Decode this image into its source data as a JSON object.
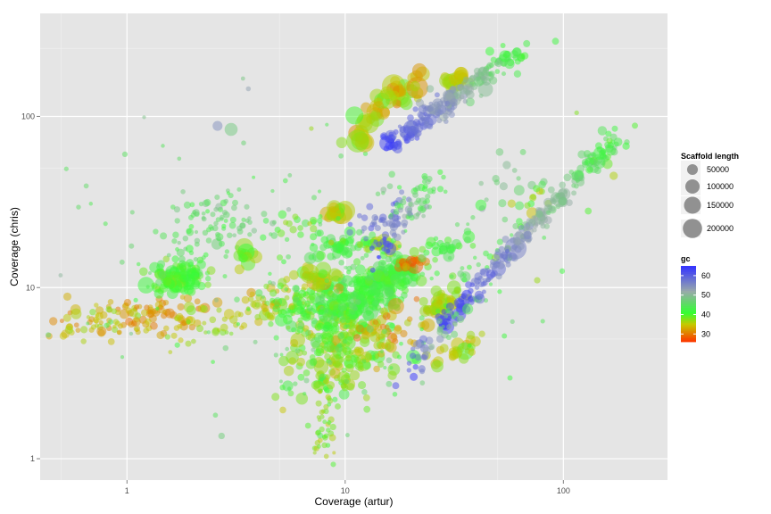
{
  "chart_data": {
    "type": "scatter",
    "title": "",
    "xlabel": "Coverage (artur)",
    "ylabel": "Coverage (chris)",
    "x_scale": "log10",
    "y_scale": "log10",
    "xlim": [
      0.4,
      300
    ],
    "ylim": [
      0.75,
      400
    ],
    "x_ticks": [
      {
        "value": 1,
        "label": "1"
      },
      {
        "value": 10,
        "label": "10"
      },
      {
        "value": 100,
        "label": "100"
      }
    ],
    "y_ticks": [
      {
        "value": 1,
        "label": "1"
      },
      {
        "value": 10,
        "label": "10"
      },
      {
        "value": 100,
        "label": "100"
      }
    ],
    "grid": true,
    "size_legend": {
      "title": "Scaffold length",
      "entries": [
        {
          "value": 50000,
          "label": "50000"
        },
        {
          "value": 100000,
          "label": "100000"
        },
        {
          "value": 150000,
          "label": "150000"
        },
        {
          "value": 200000,
          "label": "200000"
        }
      ]
    },
    "color_legend": {
      "title": "gc",
      "range": [
        26,
        65
      ],
      "ticks": [
        {
          "value": 60,
          "label": "60"
        },
        {
          "value": 50,
          "label": "50"
        },
        {
          "value": 40,
          "label": "40"
        },
        {
          "value": 30,
          "label": "30"
        }
      ],
      "colors": [
        {
          "value": 26,
          "color": "#ff3300"
        },
        {
          "value": 35,
          "color": "#c8c800"
        },
        {
          "value": 41,
          "color": "#33ff33"
        },
        {
          "value": 52,
          "color": "#99aaaa"
        },
        {
          "value": 65,
          "color": "#3333ff"
        }
      ]
    },
    "clusters": [
      {
        "x": 1.3,
        "y": 7.0,
        "sx": 0.16,
        "sy": 0.06,
        "gc": 33,
        "n": 90,
        "len": 12000,
        "rho": 0.1
      },
      {
        "x": 0.75,
        "y": 5.9,
        "sx": 0.12,
        "sy": 0.05,
        "gc": 35,
        "n": 40,
        "len": 9000,
        "rho": 0.3
      },
      {
        "x": 1.8,
        "y": 11.5,
        "sx": 0.07,
        "sy": 0.045,
        "gc": 41,
        "n": 110,
        "len": 24000,
        "rho": 0.3
      },
      {
        "x": 2.5,
        "y": 23.0,
        "sx": 0.13,
        "sy": 0.1,
        "gc": 45,
        "n": 90,
        "len": 7000,
        "rho": 0.4
      },
      {
        "x": 2.6,
        "y": 6.2,
        "sx": 0.14,
        "sy": 0.06,
        "gc": 37,
        "n": 35,
        "len": 8000,
        "rho": 0.3
      },
      {
        "x": 4.5,
        "y": 8.2,
        "sx": 0.09,
        "sy": 0.06,
        "gc": 36,
        "n": 45,
        "len": 15000,
        "rho": 0.4
      },
      {
        "x": 3.5,
        "y": 15.0,
        "sx": 0.03,
        "sy": 0.025,
        "gc": 39,
        "n": 12,
        "len": 60000,
        "rho": 0.0
      },
      {
        "x": 9.5,
        "y": 4.3,
        "sx": 0.12,
        "sy": 0.14,
        "gc": 38,
        "n": 190,
        "len": 25000,
        "rho": 0.1
      },
      {
        "x": 8.0,
        "y": 7.5,
        "sx": 0.12,
        "sy": 0.08,
        "gc": 41,
        "n": 150,
        "len": 20000,
        "rho": 0.2
      },
      {
        "x": 13.0,
        "y": 9.5,
        "sx": 0.1,
        "sy": 0.09,
        "gc": 42,
        "n": 170,
        "len": 18000,
        "rho": 0.5
      },
      {
        "x": 16.0,
        "y": 11.5,
        "sx": 0.07,
        "sy": 0.05,
        "gc": 42,
        "n": 70,
        "len": 30000,
        "rho": 0.4
      },
      {
        "x": 8.0,
        "y": 1.6,
        "sx": 0.03,
        "sy": 0.12,
        "gc": 38,
        "n": 45,
        "len": 5000,
        "rho": 0.0
      },
      {
        "x": 7.3,
        "y": 11.5,
        "sx": 0.05,
        "sy": 0.03,
        "gc": 36,
        "n": 30,
        "len": 40000,
        "rho": 0.0
      },
      {
        "x": 9.0,
        "y": 27.5,
        "sx": 0.03,
        "sy": 0.02,
        "gc": 35,
        "n": 20,
        "len": 45000,
        "rho": 0.0
      },
      {
        "x": 9.8,
        "y": 17.5,
        "sx": 0.06,
        "sy": 0.03,
        "gc": 42,
        "n": 40,
        "len": 25000,
        "rho": 0.5
      },
      {
        "x": 14.5,
        "y": 17.5,
        "sx": 0.04,
        "sy": 0.03,
        "gc": 38,
        "n": 20,
        "len": 40000,
        "rho": 0.0
      },
      {
        "x": 20.0,
        "y": 14.5,
        "sx": 0.03,
        "sy": 0.02,
        "gc": 30,
        "n": 15,
        "len": 35000,
        "rho": 0.0
      },
      {
        "x": 15.0,
        "y": 5.5,
        "sx": 0.08,
        "sy": 0.06,
        "gc": 33,
        "n": 40,
        "len": 15000,
        "rho": 0.3
      },
      {
        "x": 28.0,
        "y": 8.2,
        "sx": 0.05,
        "sy": 0.05,
        "gc": 37,
        "n": 45,
        "len": 30000,
        "rho": 0.7
      },
      {
        "x": 28.0,
        "y": 17.0,
        "sx": 0.05,
        "sy": 0.03,
        "gc": 42,
        "n": 25,
        "len": 25000,
        "rho": 0.3
      },
      {
        "x": 34.0,
        "y": 4.3,
        "sx": 0.05,
        "sy": 0.04,
        "gc": 36,
        "n": 25,
        "len": 35000,
        "rho": 0.4
      },
      {
        "x": 14.0,
        "y": 25.0,
        "sx": 0.06,
        "sy": 0.07,
        "gc": 58,
        "n": 35,
        "len": 8000,
        "rho": 0.4
      },
      {
        "x": 18.0,
        "y": 32.0,
        "sx": 0.05,
        "sy": 0.07,
        "gc": 45,
        "n": 20,
        "len": 8000,
        "rho": 0.0
      },
      {
        "x": 60.0,
        "y": 35.0,
        "sx": 0.15,
        "sy": 0.15,
        "gc": 47,
        "n": 22,
        "len": 12000,
        "rho": 0.1
      },
      {
        "x": 45.0,
        "y": 15.0,
        "sx": 0.12,
        "sy": 0.15,
        "gc": 42,
        "n": 22,
        "len": 10000,
        "rho": 0.1
      },
      {
        "x": 13.0,
        "y": 8.0,
        "sx": 0.35,
        "sy": 0.35,
        "gc": 44,
        "n": 130,
        "len": 4000,
        "rho": 0.2
      },
      {
        "x": 2.5,
        "y": 18.0,
        "sx": 0.45,
        "sy": 0.4,
        "gc": 46,
        "n": 60,
        "len": 3000,
        "rho": 0.1
      },
      {
        "x": 20.0,
        "y": 140.0,
        "sx": 0.04,
        "sy": 0.07,
        "gc": 36,
        "n": 20,
        "len": 60000,
        "rho": 0.6
      },
      {
        "x": 18.0,
        "y": 145.0,
        "sx": 0.02,
        "sy": 0.02,
        "gc": 35,
        "n": 6,
        "len": 120000,
        "rho": 0.0
      },
      {
        "x": 32.0,
        "y": 160.0,
        "sx": 0.03,
        "sy": 0.02,
        "gc": 36,
        "n": 20,
        "len": 60000,
        "rho": 0.0
      },
      {
        "x": 13.5,
        "y": 105.0,
        "sx": 0.05,
        "sy": 0.06,
        "gc": 35,
        "n": 25,
        "len": 80000,
        "rho": 0.8
      },
      {
        "x": 12.0,
        "y": 72.0,
        "sx": 0.02,
        "sy": 0.02,
        "gc": 36,
        "n": 8,
        "len": 110000,
        "rho": 0.0
      },
      {
        "x": 160.0,
        "y": 60.0,
        "sx": 0.07,
        "sy": 0.08,
        "gc": 43,
        "n": 20,
        "len": 15000,
        "rho": 0.9
      },
      {
        "x": 75.0,
        "y": 33.0,
        "sx": 0.04,
        "sy": 0.04,
        "gc": 38,
        "n": 10,
        "len": 25000,
        "rho": 0.5
      },
      {
        "x": 7.0,
        "y": 22.0,
        "sx": 0.07,
        "sy": 0.06,
        "gc": 40,
        "n": 20,
        "len": 10000,
        "rho": 0.0
      }
    ],
    "trends": [
      {
        "x1": 15.0,
        "y1": 65.0,
        "x2": 65.0,
        "y2": 240.0,
        "noise": 0.035,
        "n": 200,
        "len": 15000
      },
      {
        "x1": 28.0,
        "y1": 6.0,
        "x2": 170.0,
        "y2": 75.0,
        "noise": 0.03,
        "n": 200,
        "len": 15000
      },
      {
        "x1": 14.0,
        "y1": 16.0,
        "x2": 26.0,
        "y2": 42.0,
        "noise": 0.04,
        "n": 60,
        "len": 8000
      },
      {
        "x1": 19.0,
        "y1": 3.0,
        "x2": 34.0,
        "y2": 8.0,
        "noise": 0.05,
        "n": 40,
        "len": 8000
      }
    ],
    "points": [
      {
        "x": 2.6,
        "y": 88.0,
        "gc": 55,
        "len": 40000
      },
      {
        "x": 3.0,
        "y": 84.0,
        "gc": 48,
        "len": 80000
      },
      {
        "x": 3.6,
        "y": 145.0,
        "gc": 53,
        "len": 5000
      },
      {
        "x": 7.0,
        "y": 85.0,
        "gc": 37,
        "len": 4000
      },
      {
        "x": 46.0,
        "y": 240.0,
        "gc": 41,
        "len": 30000
      },
      {
        "x": 54.0,
        "y": 225.0,
        "gc": 42,
        "len": 60000
      },
      {
        "x": 92.0,
        "y": 275.0,
        "gc": 42,
        "len": 15000
      },
      {
        "x": 115.0,
        "y": 105.0,
        "gc": 38,
        "len": 4000
      },
      {
        "x": 170.0,
        "y": 45.0,
        "gc": 36,
        "len": 25000
      },
      {
        "x": 130.0,
        "y": 28.0,
        "gc": 40,
        "len": 15000
      },
      {
        "x": 55.0,
        "y": 52.0,
        "gc": 50,
        "len": 25000
      },
      {
        "x": 80.0,
        "y": 40.0,
        "gc": 44,
        "len": 20000
      },
      {
        "x": 24.5,
        "y": 145.0,
        "gc": 50,
        "len": 20000
      },
      {
        "x": 22.0,
        "y": 120.0,
        "gc": 53,
        "len": 25000
      }
    ]
  }
}
